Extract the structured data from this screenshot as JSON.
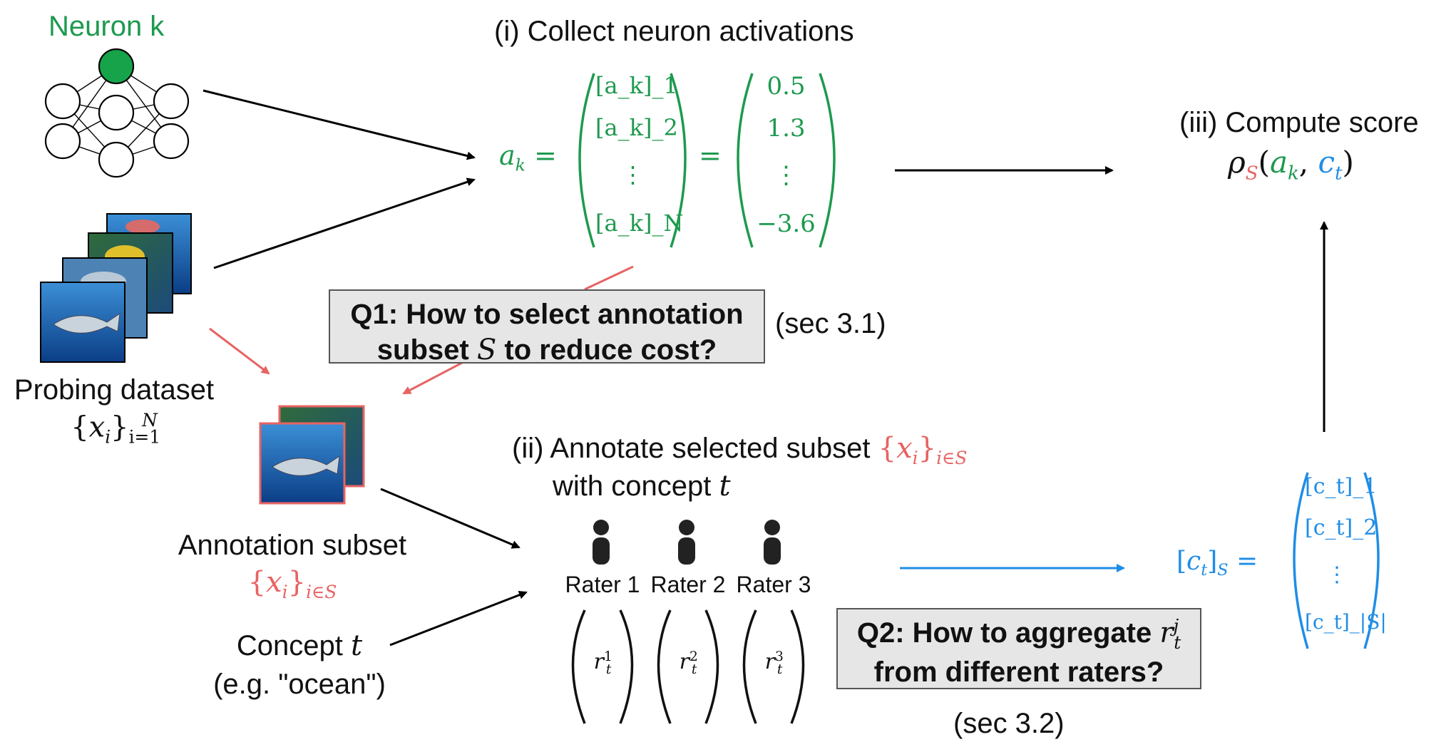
{
  "neuron": {
    "label": "Neuron k"
  },
  "step1": {
    "title": "(i) Collect neuron activations",
    "lhs": "a",
    "lhs_sub": "k",
    "symbolic": [
      "[a_k]_1",
      "[a_k]_2",
      "⋮",
      "[a_k]_N"
    ],
    "values": [
      "0.5",
      "1.3",
      "⋮",
      "−3.6"
    ]
  },
  "step3": {
    "title": "(iii) Compute score"
  },
  "probing": {
    "label": "Probing dataset"
  },
  "q1": {
    "line1": "Q1: How to select annotation",
    "line2a": "subset",
    "line2var": "S",
    "line2b": "to reduce cost?",
    "ref": "(sec 3.1)"
  },
  "subset": {
    "label": "Annotation subset"
  },
  "concept": {
    "label": "Concept",
    "var": "t",
    "example": "(e.g. \"ocean\")"
  },
  "step2": {
    "line1": "(ii) Annotate selected subset",
    "line2": "with concept",
    "var": "t"
  },
  "raters": [
    {
      "label": "Rater 1",
      "sup": "1"
    },
    {
      "label": "Rater 2",
      "sup": "2"
    },
    {
      "label": "Rater 3",
      "sup": "3"
    }
  ],
  "q2": {
    "line1": "Q2: How to aggregate",
    "line2": "from different raters?",
    "ref": "(sec 3.2)"
  },
  "ct": {
    "entries": [
      "[c_t]_1",
      "[c_t]_2",
      "⋮",
      "[c_t]_|S|"
    ]
  },
  "colors": {
    "green": "#1d9a4e",
    "red": "#e86363",
    "blue": "#1f8de6",
    "box": "#e6e6e6"
  },
  "icons": [
    "neural-network-icon",
    "image-stack-icon",
    "person-icon"
  ]
}
